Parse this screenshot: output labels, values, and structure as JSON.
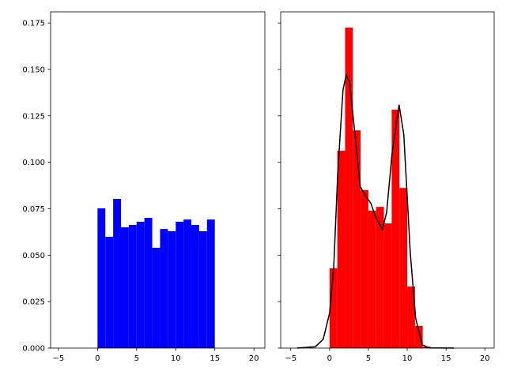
{
  "chart_data": [
    {
      "type": "bar",
      "panel": "left",
      "bin_edges": [
        0,
        1,
        2,
        3,
        4,
        5,
        6,
        7,
        8,
        9,
        10,
        11,
        12,
        13,
        14,
        15
      ],
      "values": [
        0.0752,
        0.0599,
        0.0803,
        0.065,
        0.0663,
        0.068,
        0.0701,
        0.054,
        0.0641,
        0.0629,
        0.068,
        0.0692,
        0.0663,
        0.0629,
        0.0692
      ],
      "color": "#0000ff",
      "xlim": [
        -6.0,
        21.4
      ],
      "ylim": [
        0,
        0.181
      ],
      "xticks": [
        "−5",
        "0",
        "5",
        "10",
        "15",
        "20"
      ],
      "xtick_values": [
        -5,
        0,
        5,
        10,
        15,
        20
      ],
      "yticks": [
        "0.000",
        "0.025",
        "0.050",
        "0.075",
        "0.100",
        "0.125",
        "0.150",
        "0.175"
      ],
      "ytick_values": [
        0,
        0.025,
        0.05,
        0.075,
        0.1,
        0.125,
        0.15,
        0.175
      ],
      "grid": false
    },
    {
      "type": "bar",
      "panel": "right",
      "bin_edges": [
        0,
        1,
        2,
        3,
        4,
        5,
        6,
        7,
        8,
        9,
        10,
        11,
        12,
        13
      ],
      "values": [
        0.0429,
        0.1062,
        0.1725,
        0.1172,
        0.085,
        0.0739,
        0.076,
        0.0671,
        0.1283,
        0.0862,
        0.0331,
        0.0119,
        0.0008
      ],
      "color": "#ff0000",
      "xlim": [
        -6.3,
        21.2
      ],
      "ylim": [
        0,
        0.181
      ],
      "xticks": [
        "−5",
        "0",
        "5",
        "10",
        "15",
        "20"
      ],
      "xtick_values": [
        -5,
        0,
        5,
        10,
        15,
        20
      ],
      "ytick_values": [
        0,
        0.025,
        0.05,
        0.075,
        0.1,
        0.125,
        0.15,
        0.175
      ],
      "sharey": true,
      "grid": false,
      "line": {
        "type": "line",
        "color": "#000000",
        "x": [
          -4.2,
          -1.84,
          -0.82,
          0,
          0.54,
          1.05,
          1.73,
          2.14,
          2.59,
          3.27,
          3.95,
          4.63,
          5.31,
          5.99,
          6.8,
          7.35,
          8.03,
          8.95,
          9.56,
          10.4,
          11.09,
          11.94,
          12.8,
          16
        ],
        "y": [
          0,
          0.0007,
          0.0047,
          0.0188,
          0.044,
          0.094,
          0.139,
          0.147,
          0.143,
          0.115,
          0.087,
          0.082,
          0.078,
          0.07,
          0.064,
          0.073,
          0.104,
          0.131,
          0.115,
          0.051,
          0.016,
          0.0018,
          0.0001,
          0
        ]
      }
    }
  ]
}
